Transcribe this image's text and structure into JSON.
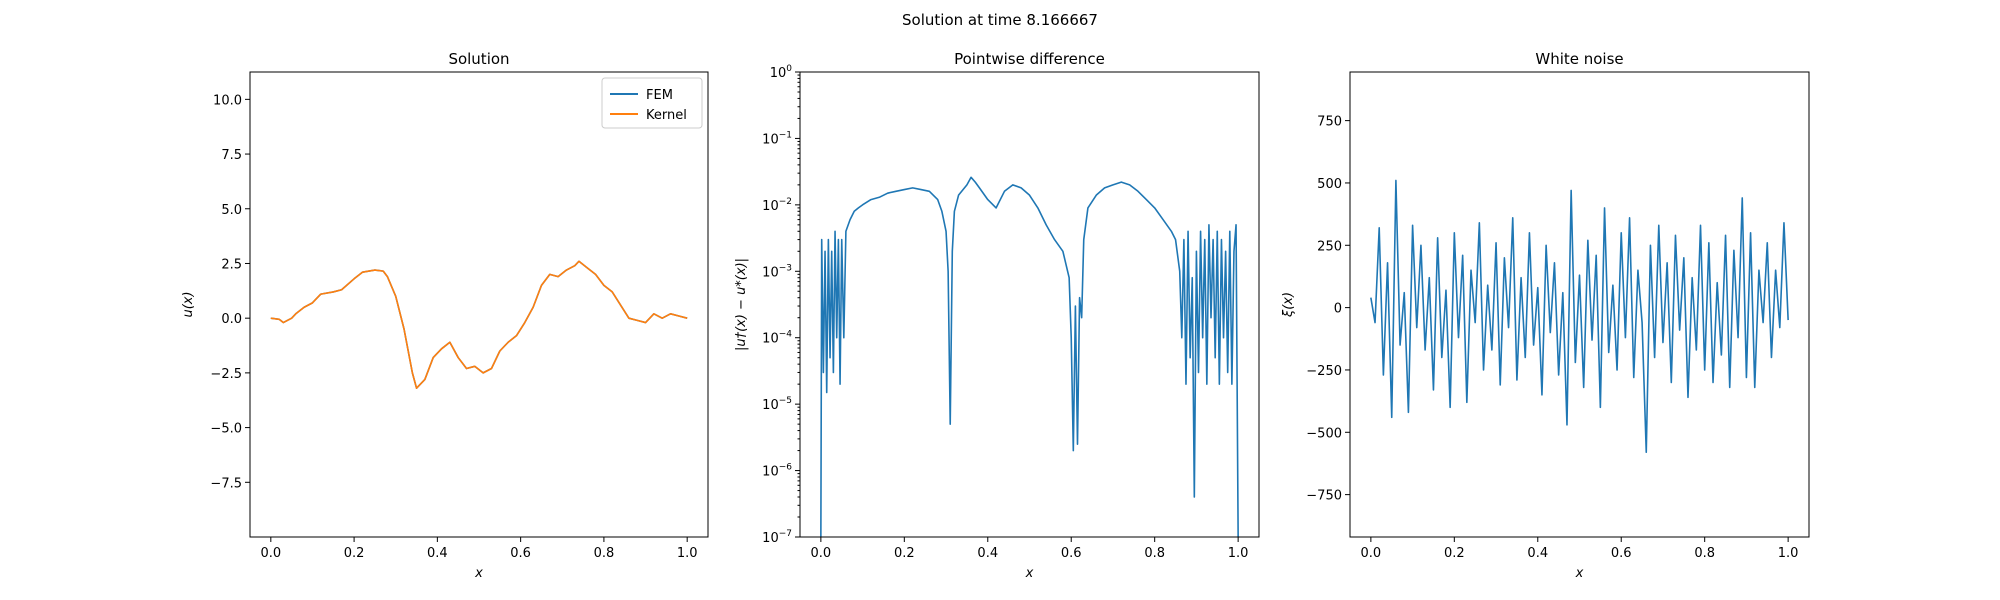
{
  "figure": {
    "suptitle": "Solution at time 8.166667"
  },
  "chart_data": [
    {
      "type": "line",
      "title": "Solution",
      "xlabel": "x",
      "ylabel": "u(x)",
      "xlim": [
        -0.05,
        1.05
      ],
      "ylim": [
        -10,
        11.25
      ],
      "xticks": [
        0.0,
        0.2,
        0.4,
        0.6,
        0.8,
        1.0
      ],
      "xtick_labels": [
        "0.0",
        "0.2",
        "0.4",
        "0.6",
        "0.8",
        "1.0"
      ],
      "yticks": [
        -7.5,
        -5.0,
        -2.5,
        0.0,
        2.5,
        5.0,
        7.5,
        10.0
      ],
      "ytick_labels": [
        "−7.5",
        "−5.0",
        "−2.5",
        "0.0",
        "2.5",
        "5.0",
        "7.5",
        "10.0"
      ],
      "legend": {
        "placement": "top-right",
        "entries": [
          "FEM",
          "Kernel"
        ]
      },
      "series": [
        {
          "name": "FEM",
          "color": "#1f77b4",
          "x": [
            0.0,
            0.02,
            0.03,
            0.05,
            0.06,
            0.08,
            0.1,
            0.12,
            0.15,
            0.17,
            0.2,
            0.22,
            0.25,
            0.27,
            0.28,
            0.3,
            0.32,
            0.34,
            0.35,
            0.37,
            0.39,
            0.41,
            0.43,
            0.45,
            0.47,
            0.49,
            0.51,
            0.53,
            0.55,
            0.57,
            0.59,
            0.61,
            0.63,
            0.65,
            0.67,
            0.69,
            0.71,
            0.73,
            0.74,
            0.76,
            0.78,
            0.8,
            0.82,
            0.84,
            0.86,
            0.88,
            0.9,
            0.92,
            0.94,
            0.96,
            0.98,
            1.0
          ],
          "y": [
            0.0,
            -0.05,
            -0.2,
            0.0,
            0.2,
            0.5,
            0.7,
            1.1,
            1.2,
            1.3,
            1.8,
            2.1,
            2.2,
            2.15,
            1.9,
            1.0,
            -0.5,
            -2.5,
            -3.2,
            -2.8,
            -1.8,
            -1.4,
            -1.1,
            -1.8,
            -2.3,
            -2.2,
            -2.5,
            -2.3,
            -1.5,
            -1.1,
            -0.8,
            -0.2,
            0.5,
            1.5,
            2.0,
            1.9,
            2.2,
            2.4,
            2.6,
            2.3,
            2.0,
            1.5,
            1.2,
            0.6,
            0.0,
            -0.1,
            -0.2,
            0.2,
            0.0,
            0.2,
            0.1,
            0.0
          ]
        },
        {
          "name": "Kernel",
          "color": "#ff7f0e",
          "x": [
            0.0,
            0.02,
            0.03,
            0.05,
            0.06,
            0.08,
            0.1,
            0.12,
            0.15,
            0.17,
            0.2,
            0.22,
            0.25,
            0.27,
            0.28,
            0.3,
            0.32,
            0.34,
            0.35,
            0.37,
            0.39,
            0.41,
            0.43,
            0.45,
            0.47,
            0.49,
            0.51,
            0.53,
            0.55,
            0.57,
            0.59,
            0.61,
            0.63,
            0.65,
            0.67,
            0.69,
            0.71,
            0.73,
            0.74,
            0.76,
            0.78,
            0.8,
            0.82,
            0.84,
            0.86,
            0.88,
            0.9,
            0.92,
            0.94,
            0.96,
            0.98,
            1.0
          ],
          "y": [
            0.0,
            -0.05,
            -0.2,
            0.0,
            0.2,
            0.5,
            0.7,
            1.1,
            1.2,
            1.3,
            1.8,
            2.1,
            2.2,
            2.15,
            1.9,
            1.0,
            -0.5,
            -2.5,
            -3.2,
            -2.8,
            -1.8,
            -1.4,
            -1.1,
            -1.8,
            -2.3,
            -2.2,
            -2.5,
            -2.3,
            -1.5,
            -1.1,
            -0.8,
            -0.2,
            0.5,
            1.5,
            2.0,
            1.9,
            2.2,
            2.4,
            2.6,
            2.3,
            2.0,
            1.5,
            1.2,
            0.6,
            0.0,
            -0.1,
            -0.2,
            0.2,
            0.0,
            0.2,
            0.1,
            0.0
          ]
        }
      ]
    },
    {
      "type": "line",
      "title": "Pointwise difference",
      "xlabel": "x",
      "ylabel": "|u†(x) − u*(x)|",
      "yscale": "log",
      "xlim": [
        -0.05,
        1.05
      ],
      "ylim": [
        1e-07,
        1
      ],
      "xticks": [
        0.0,
        0.2,
        0.4,
        0.6,
        0.8,
        1.0
      ],
      "xtick_labels": [
        "0.0",
        "0.2",
        "0.4",
        "0.6",
        "0.8",
        "1.0"
      ],
      "yticks": [
        1e-07,
        1e-06,
        1e-05,
        0.0001,
        0.001,
        0.01,
        0.1,
        1
      ],
      "ytick_labels": [
        "10",
        "10",
        "10",
        "10",
        "10",
        "10",
        "10",
        "10"
      ],
      "ytick_exponents": [
        "−7",
        "−6",
        "−5",
        "−4",
        "−3",
        "−2",
        "−1",
        "0"
      ],
      "series": [
        {
          "color": "#1f77b4",
          "x": [
            0.0,
            0.002,
            0.006,
            0.01,
            0.014,
            0.018,
            0.022,
            0.026,
            0.03,
            0.034,
            0.038,
            0.042,
            0.046,
            0.05,
            0.055,
            0.06,
            0.07,
            0.08,
            0.09,
            0.1,
            0.12,
            0.14,
            0.16,
            0.18,
            0.2,
            0.22,
            0.24,
            0.26,
            0.28,
            0.29,
            0.3,
            0.305,
            0.31,
            0.315,
            0.32,
            0.33,
            0.35,
            0.36,
            0.37,
            0.38,
            0.4,
            0.42,
            0.44,
            0.46,
            0.48,
            0.5,
            0.52,
            0.54,
            0.56,
            0.58,
            0.595,
            0.6,
            0.605,
            0.61,
            0.615,
            0.62,
            0.625,
            0.63,
            0.64,
            0.66,
            0.68,
            0.7,
            0.72,
            0.74,
            0.76,
            0.78,
            0.8,
            0.82,
            0.84,
            0.85,
            0.86,
            0.865,
            0.87,
            0.875,
            0.88,
            0.885,
            0.89,
            0.895,
            0.9,
            0.905,
            0.91,
            0.915,
            0.92,
            0.925,
            0.93,
            0.935,
            0.94,
            0.945,
            0.95,
            0.955,
            0.96,
            0.965,
            0.97,
            0.975,
            0.98,
            0.985,
            0.99,
            0.995,
            1.0
          ],
          "y": [
            1e-07,
            0.003,
            3e-05,
            0.002,
            1.5e-05,
            0.003,
            5e-05,
            0.002,
            3e-05,
            0.004,
            0.0001,
            0.003,
            2e-05,
            0.003,
            0.0001,
            0.004,
            0.006,
            0.008,
            0.009,
            0.01,
            0.012,
            0.013,
            0.015,
            0.016,
            0.017,
            0.018,
            0.017,
            0.016,
            0.012,
            0.008,
            0.004,
            0.001,
            5e-06,
            0.002,
            0.008,
            0.014,
            0.02,
            0.026,
            0.022,
            0.018,
            0.012,
            0.009,
            0.016,
            0.02,
            0.018,
            0.014,
            0.009,
            0.005,
            0.003,
            0.002,
            0.0008,
            0.0001,
            2e-06,
            0.0003,
            2.5e-06,
            0.0004,
            0.0002,
            0.003,
            0.009,
            0.014,
            0.018,
            0.02,
            0.022,
            0.02,
            0.016,
            0.012,
            0.009,
            0.006,
            0.004,
            0.003,
            0.001,
            0.0001,
            0.003,
            2e-05,
            0.004,
            5e-05,
            0.0008,
            4e-07,
            0.002,
            3e-05,
            0.004,
            0.0001,
            0.003,
            2e-05,
            0.005,
            0.0002,
            0.003,
            5e-05,
            0.004,
            2e-05,
            0.003,
            0.0001,
            0.002,
            3e-05,
            0.004,
            2e-05,
            0.002,
            0.005,
            1e-07
          ]
        }
      ]
    },
    {
      "type": "line",
      "title": "White noise",
      "xlabel": "x",
      "ylabel": "ξ(x)",
      "xlim": [
        -0.05,
        1.05
      ],
      "ylim": [
        -920,
        945
      ],
      "xticks": [
        0.0,
        0.2,
        0.4,
        0.6,
        0.8,
        1.0
      ],
      "xtick_labels": [
        "0.0",
        "0.2",
        "0.4",
        "0.6",
        "0.8",
        "1.0"
      ],
      "yticks": [
        -750,
        -500,
        -250,
        0,
        250,
        500,
        750
      ],
      "ytick_labels": [
        "−750",
        "−500",
        "−250",
        "0",
        "250",
        "500",
        "750"
      ],
      "series": [
        {
          "color": "#1f77b4",
          "x": [
            0.0,
            0.01,
            0.02,
            0.03,
            0.04,
            0.05,
            0.06,
            0.07,
            0.08,
            0.09,
            0.1,
            0.11,
            0.12,
            0.13,
            0.14,
            0.15,
            0.16,
            0.17,
            0.18,
            0.19,
            0.2,
            0.21,
            0.22,
            0.23,
            0.24,
            0.25,
            0.26,
            0.27,
            0.28,
            0.29,
            0.3,
            0.31,
            0.32,
            0.33,
            0.34,
            0.35,
            0.36,
            0.37,
            0.38,
            0.39,
            0.4,
            0.41,
            0.42,
            0.43,
            0.44,
            0.45,
            0.46,
            0.47,
            0.48,
            0.49,
            0.5,
            0.51,
            0.52,
            0.53,
            0.54,
            0.55,
            0.56,
            0.57,
            0.58,
            0.59,
            0.6,
            0.61,
            0.62,
            0.63,
            0.64,
            0.65,
            0.66,
            0.67,
            0.68,
            0.69,
            0.7,
            0.71,
            0.72,
            0.73,
            0.74,
            0.75,
            0.76,
            0.77,
            0.78,
            0.79,
            0.8,
            0.81,
            0.82,
            0.83,
            0.84,
            0.85,
            0.86,
            0.87,
            0.88,
            0.89,
            0.9,
            0.91,
            0.92,
            0.93,
            0.94,
            0.95,
            0.96,
            0.97,
            0.98,
            0.99,
            1.0
          ],
          "y": [
            40,
            -60,
            320,
            -270,
            180,
            -440,
            510,
            -150,
            60,
            -420,
            330,
            -80,
            250,
            -170,
            120,
            -330,
            280,
            -200,
            70,
            -400,
            300,
            -120,
            210,
            -380,
            150,
            -60,
            340,
            -250,
            90,
            -170,
            260,
            -310,
            200,
            -80,
            360,
            -290,
            120,
            -200,
            300,
            -150,
            80,
            -350,
            250,
            -100,
            180,
            -270,
            60,
            -470,
            470,
            -220,
            130,
            -320,
            270,
            -130,
            210,
            -400,
            400,
            -180,
            90,
            -250,
            300,
            -120,
            360,
            -280,
            150,
            -60,
            -580,
            250,
            -200,
            330,
            -140,
            180,
            -300,
            290,
            -90,
            200,
            -360,
            120,
            -170,
            330,
            -250,
            260,
            -300,
            100,
            -190,
            290,
            -320,
            230,
            -120,
            440,
            -280,
            300,
            -320,
            150,
            -60,
            260,
            -200,
            150,
            -80,
            340,
            -50
          ]
        }
      ]
    }
  ]
}
